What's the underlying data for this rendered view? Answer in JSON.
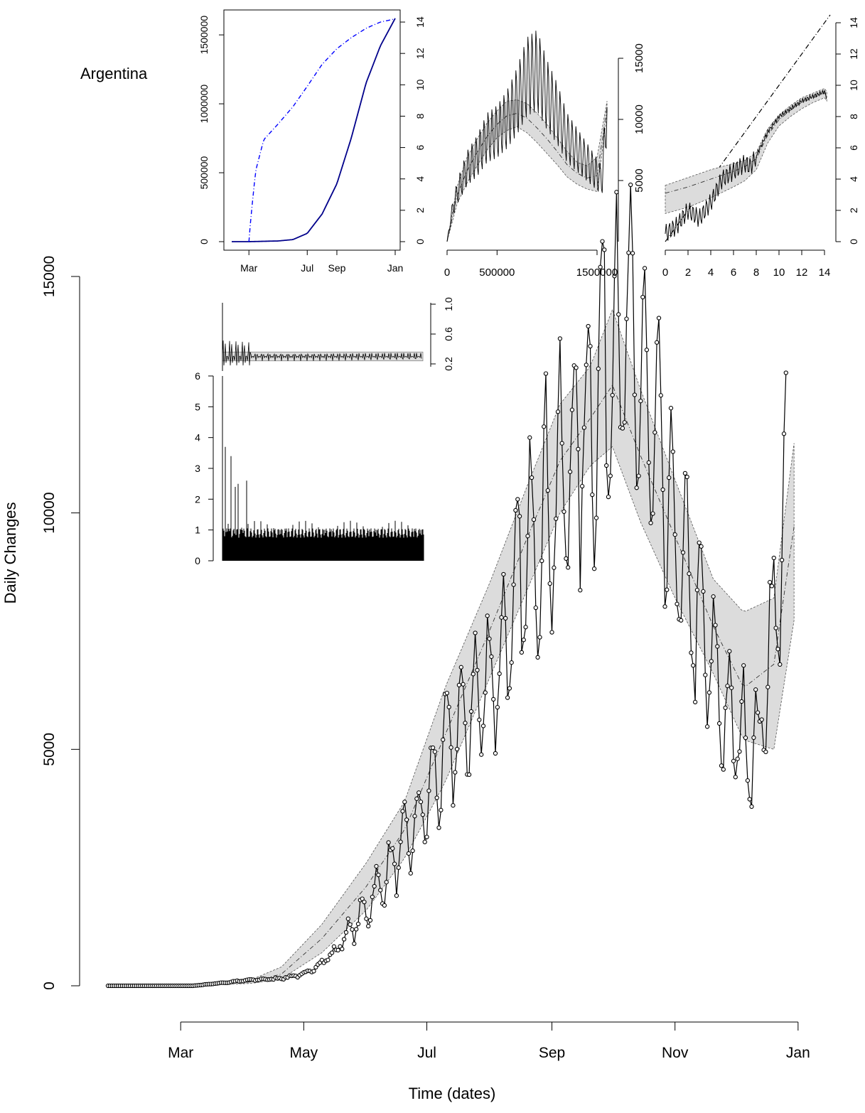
{
  "chart_data": [
    {
      "id": "main",
      "type": "scatter",
      "title": "",
      "country_label": "Argentina",
      "xlabel": "Time (dates)",
      "ylabel": "Daily Changes",
      "xlim": [
        "2020-01-25",
        "2020-12-31"
      ],
      "ylim": [
        0,
        15000
      ],
      "x_ticks": [
        {
          "date": "2020-03-01",
          "label": "Mar"
        },
        {
          "date": "2020-05-01",
          "label": "May"
        },
        {
          "date": "2020-07-01",
          "label": "Jul"
        },
        {
          "date": "2020-09-01",
          "label": "Sep"
        },
        {
          "date": "2020-11-01",
          "label": "Nov"
        },
        {
          "date": "2021-01-01",
          "label": "Jan"
        }
      ],
      "y_ticks": [
        0,
        5000,
        10000,
        15000
      ],
      "series": [
        {
          "kind": "observed_daily_points",
          "x": [
            "2020-01-25",
            "2020-02-08",
            "2020-02-22",
            "2020-03-07",
            "2020-03-21",
            "2020-04-04",
            "2020-04-18",
            "2020-05-02",
            "2020-05-16",
            "2020-05-30",
            "2020-06-13",
            "2020-06-27",
            "2020-07-11",
            "2020-07-25",
            "2020-08-08",
            "2020-08-22",
            "2020-09-05",
            "2020-09-19",
            "2020-10-03",
            "2020-10-17",
            "2020-10-31",
            "2020-11-14",
            "2020-11-28",
            "2020-12-12",
            "2020-12-26"
          ],
          "y": [
            0,
            0,
            0,
            0,
            60,
            120,
            150,
            250,
            700,
            1500,
            2500,
            3500,
            5000,
            6000,
            7000,
            9500,
            10500,
            12000,
            14000,
            12500,
            9500,
            7500,
            5500,
            5000,
            10000
          ]
        },
        {
          "kind": "band_center",
          "x": [
            "2020-01-25",
            "2020-03-15",
            "2020-04-05",
            "2020-04-20",
            "2020-05-10",
            "2020-06-01",
            "2020-06-20",
            "2020-07-10",
            "2020-08-01",
            "2020-08-20",
            "2020-09-05",
            "2020-09-20",
            "2020-10-01",
            "2020-10-15",
            "2020-11-01",
            "2020-11-20",
            "2020-12-05",
            "2020-12-20",
            "2020-12-31"
          ],
          "y": [
            0,
            30,
            80,
            250,
            1000,
            2100,
            3300,
            5300,
            7500,
            9500,
            11100,
            12000,
            12700,
            11200,
            9500,
            7600,
            6300,
            6800,
            10000
          ]
        },
        {
          "kind": "band_upper",
          "x": [
            "2020-01-25",
            "2020-03-15",
            "2020-04-05",
            "2020-04-20",
            "2020-05-10",
            "2020-06-01",
            "2020-06-20",
            "2020-07-10",
            "2020-08-01",
            "2020-08-20",
            "2020-09-05",
            "2020-09-20",
            "2020-10-01",
            "2020-10-15",
            "2020-11-01",
            "2020-11-20",
            "2020-12-05",
            "2020-12-20",
            "2020-12-31"
          ],
          "y": [
            0,
            40,
            130,
            400,
            1300,
            2600,
            3900,
            6300,
            8500,
            10600,
            12300,
            13100,
            14300,
            12600,
            10700,
            8600,
            7900,
            8200,
            11800
          ]
        },
        {
          "kind": "band_lower",
          "x": [
            "2020-01-25",
            "2020-03-15",
            "2020-04-05",
            "2020-04-20",
            "2020-05-10",
            "2020-06-01",
            "2020-06-20",
            "2020-07-10",
            "2020-08-01",
            "2020-08-20",
            "2020-09-05",
            "2020-09-20",
            "2020-10-01",
            "2020-10-15",
            "2020-11-01",
            "2020-11-20",
            "2020-12-05",
            "2020-12-20",
            "2020-12-31"
          ],
          "y": [
            0,
            20,
            50,
            150,
            700,
            1600,
            2700,
            4300,
            6500,
            8400,
            10000,
            11000,
            11400,
            9800,
            8200,
            6600,
            5200,
            5000,
            8000
          ]
        }
      ]
    },
    {
      "id": "cumulative_inset",
      "type": "line",
      "xlim": [
        "2020-01-25",
        "2021-01-01"
      ],
      "ylim": [
        0,
        1650000
      ],
      "y2lim": [
        0,
        14.5
      ],
      "x_ticks": [
        {
          "date": "2020-03-01",
          "label": "Mar"
        },
        {
          "date": "2020-07-01",
          "label": "Jul"
        },
        {
          "date": "2020-09-01",
          "label": "Sep"
        },
        {
          "date": "2021-01-01",
          "label": "Jan"
        }
      ],
      "y_ticks": [
        {
          "value": 0,
          "label": "0"
        },
        {
          "value": 500000,
          "label": "500000"
        },
        {
          "value": 1000000,
          "label": "1000000"
        },
        {
          "value": 1500000,
          "label": "1500000"
        }
      ],
      "y2_ticks": [
        0,
        2,
        4,
        6,
        8,
        10,
        12,
        14
      ],
      "series": [
        {
          "kind": "cumulative_cases",
          "color": "#00008b",
          "x": [
            "2020-01-25",
            "2020-03-01",
            "2020-05-01",
            "2020-06-01",
            "2020-07-01",
            "2020-08-01",
            "2020-09-01",
            "2020-10-01",
            "2020-11-01",
            "2020-12-01",
            "2021-01-01"
          ],
          "y": [
            0,
            0,
            5000,
            15000,
            60000,
            200000,
            420000,
            750000,
            1150000,
            1420000,
            1620000
          ]
        },
        {
          "kind": "log_cumulative",
          "axis": "right",
          "color": "#0000ff",
          "x": [
            "2020-03-01",
            "2020-03-05",
            "2020-03-15",
            "2020-04-01",
            "2020-05-01",
            "2020-06-01",
            "2020-07-01",
            "2020-08-01",
            "2020-09-01",
            "2020-10-01",
            "2020-11-01",
            "2020-12-01",
            "2021-01-01"
          ],
          "y": [
            0,
            1.5,
            4.5,
            6.5,
            7.5,
            8.6,
            9.9,
            11.3,
            12.3,
            13.0,
            13.6,
            14.0,
            14.2
          ]
        }
      ]
    },
    {
      "id": "daily_vs_cumulative_inset",
      "type": "line",
      "xlim": [
        0,
        1650000
      ],
      "ylim": [
        0,
        16500
      ],
      "x_ticks": [
        {
          "value": 0,
          "label": "0"
        },
        {
          "value": 500000,
          "label": "500000"
        },
        {
          "value": 1500000,
          "label": "1500000"
        }
      ],
      "y_ticks": [
        {
          "value": 5000,
          "label": "5000"
        },
        {
          "value": 10000,
          "label": "10000"
        },
        {
          "value": 15000,
          "label": "15000"
        }
      ],
      "series": [
        {
          "kind": "observed",
          "x": [
            0,
            50000,
            100000,
            200000,
            300000,
            400000,
            500000,
            600000,
            700000,
            800000,
            900000,
            1000000,
            1100000,
            1200000,
            1300000,
            1400000,
            1500000,
            1550000,
            1600000
          ],
          "y": [
            0,
            2500,
            4000,
            6000,
            7000,
            8500,
            9000,
            10000,
            11500,
            13500,
            14000,
            12000,
            10500,
            8500,
            7500,
            6500,
            5500,
            5000,
            11000
          ]
        },
        {
          "kind": "band_center",
          "x": [
            0,
            100000,
            200000,
            300000,
            400000,
            500000,
            600000,
            700000,
            800000,
            900000,
            1000000,
            1100000,
            1200000,
            1300000,
            1400000,
            1500000,
            1600000
          ],
          "y": [
            0,
            3800,
            5800,
            7300,
            8600,
            9600,
            10300,
            10500,
            10100,
            9300,
            8400,
            7400,
            6300,
            5600,
            5200,
            5400,
            11000
          ]
        },
        {
          "kind": "band_upper",
          "x": [
            0,
            100000,
            200000,
            300000,
            400000,
            500000,
            600000,
            700000,
            800000,
            900000,
            1000000,
            1100000,
            1200000,
            1300000,
            1400000,
            1500000,
            1600000
          ],
          "y": [
            0,
            4500,
            6900,
            8400,
            9700,
            10700,
            11500,
            11600,
            11300,
            10500,
            9600,
            8500,
            7400,
            6500,
            6200,
            6900,
            11500
          ]
        },
        {
          "kind": "band_lower",
          "x": [
            0,
            100000,
            200000,
            300000,
            400000,
            500000,
            600000,
            700000,
            800000,
            900000,
            1000000,
            1100000,
            1200000,
            1300000,
            1400000,
            1500000,
            1600000
          ],
          "y": [
            0,
            3100,
            4800,
            6200,
            7500,
            8500,
            9100,
            9400,
            8900,
            8100,
            7200,
            6300,
            5300,
            4700,
            4300,
            4100,
            10500
          ]
        }
      ]
    },
    {
      "id": "log_log_inset",
      "type": "line",
      "xlim": [
        -0.2,
        14.5
      ],
      "ylim": [
        0,
        14.5
      ],
      "x_ticks": [
        0,
        2,
        4,
        6,
        8,
        10,
        12,
        14
      ],
      "y_ticks": [
        0,
        2,
        4,
        6,
        8,
        10,
        12,
        14
      ],
      "series": [
        {
          "kind": "reference_diagonal",
          "x": [
            0,
            14.5
          ],
          "y": [
            0,
            14.5
          ]
        },
        {
          "kind": "observed",
          "x": [
            0,
            1,
            2,
            3,
            4,
            5,
            6,
            7,
            7.5,
            8,
            9,
            10,
            11,
            12,
            13,
            14,
            14.2
          ],
          "y": [
            0.5,
            1,
            2,
            1.5,
            2.5,
            4,
            4.5,
            5,
            4.8,
            5.5,
            7,
            8,
            8.5,
            9,
            9.3,
            9.6,
            9.2
          ]
        },
        {
          "kind": "band_center",
          "x": [
            0,
            2,
            4,
            6,
            7,
            8,
            9,
            10,
            11,
            12,
            13,
            14,
            14.2
          ],
          "y": [
            3.1,
            3.5,
            4,
            4.5,
            4.8,
            5.3,
            6.8,
            7.8,
            8.4,
            8.9,
            9.2,
            9.5,
            9.3
          ]
        },
        {
          "kind": "band_upper",
          "x": [
            0,
            2,
            4,
            6,
            7,
            8,
            9,
            10,
            11,
            12,
            13,
            14,
            14.2
          ],
          "y": [
            3.6,
            4.1,
            4.6,
            5,
            5.2,
            5.7,
            7.2,
            8.1,
            8.7,
            9.2,
            9.5,
            9.8,
            9.6
          ]
        },
        {
          "kind": "band_lower",
          "x": [
            0,
            2,
            4,
            6,
            7,
            8,
            9,
            10,
            11,
            12,
            13,
            14,
            14.2
          ],
          "y": [
            1.8,
            2.2,
            2.8,
            3.5,
            3.9,
            4.6,
            6.3,
            7.4,
            8,
            8.5,
            8.9,
            9.2,
            9
          ]
        }
      ]
    },
    {
      "id": "growth_rate_inset",
      "type": "line",
      "ylim": [
        0.15,
        1.05
      ],
      "y_ticks": [
        {
          "value": 0.2,
          "label": "0.2"
        },
        {
          "value": 0.6,
          "label": "0.6"
        },
        {
          "value": 1.0,
          "label": "1.0"
        }
      ]
    },
    {
      "id": "ratio_inset",
      "type": "bar",
      "ylim": [
        0,
        6
      ],
      "y_ticks": [
        0,
        1,
        2,
        3,
        4,
        5,
        6
      ]
    }
  ]
}
